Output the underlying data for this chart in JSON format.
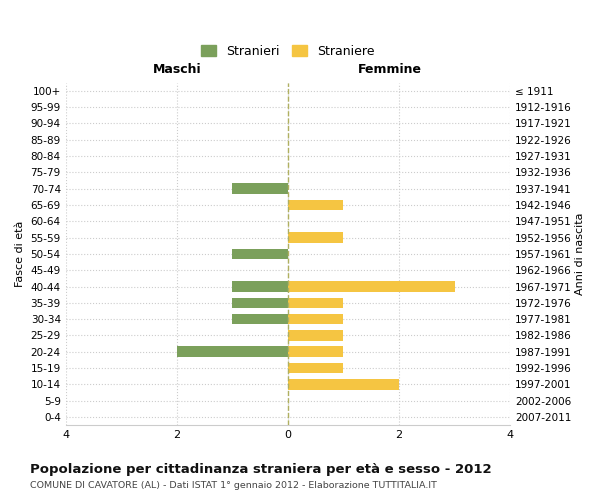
{
  "age_groups": [
    "100+",
    "95-99",
    "90-94",
    "85-89",
    "80-84",
    "75-79",
    "70-74",
    "65-69",
    "60-64",
    "55-59",
    "50-54",
    "45-49",
    "40-44",
    "35-39",
    "30-34",
    "25-29",
    "20-24",
    "15-19",
    "10-14",
    "5-9",
    "0-4"
  ],
  "birth_years": [
    "≤ 1911",
    "1912-1916",
    "1917-1921",
    "1922-1926",
    "1927-1931",
    "1932-1936",
    "1937-1941",
    "1942-1946",
    "1947-1951",
    "1952-1956",
    "1957-1961",
    "1962-1966",
    "1967-1971",
    "1972-1976",
    "1977-1981",
    "1982-1986",
    "1987-1991",
    "1992-1996",
    "1997-2001",
    "2002-2006",
    "2007-2011"
  ],
  "maschi": [
    0,
    0,
    0,
    0,
    0,
    0,
    1,
    0,
    0,
    0,
    1,
    0,
    1,
    1,
    1,
    0,
    2,
    0,
    0,
    0,
    0
  ],
  "femmine": [
    0,
    0,
    0,
    0,
    0,
    0,
    0,
    1,
    0,
    1,
    0,
    0,
    3,
    1,
    1,
    1,
    1,
    1,
    2,
    0,
    0
  ],
  "male_color": "#7ba05b",
  "female_color": "#f5c542",
  "xlim": 4,
  "title": "Popolazione per cittadinanza straniera per età e sesso - 2012",
  "subtitle": "COMUNE DI CAVATORE (AL) - Dati ISTAT 1° gennaio 2012 - Elaborazione TUTTITALIA.IT",
  "ylabel_left": "Fasce di età",
  "ylabel_right": "Anni di nascita",
  "legend_male": "Stranieri",
  "legend_female": "Straniere",
  "header_left": "Maschi",
  "header_right": "Femmine",
  "bg_color": "#ffffff",
  "grid_color": "#cccccc",
  "bar_height": 0.65
}
